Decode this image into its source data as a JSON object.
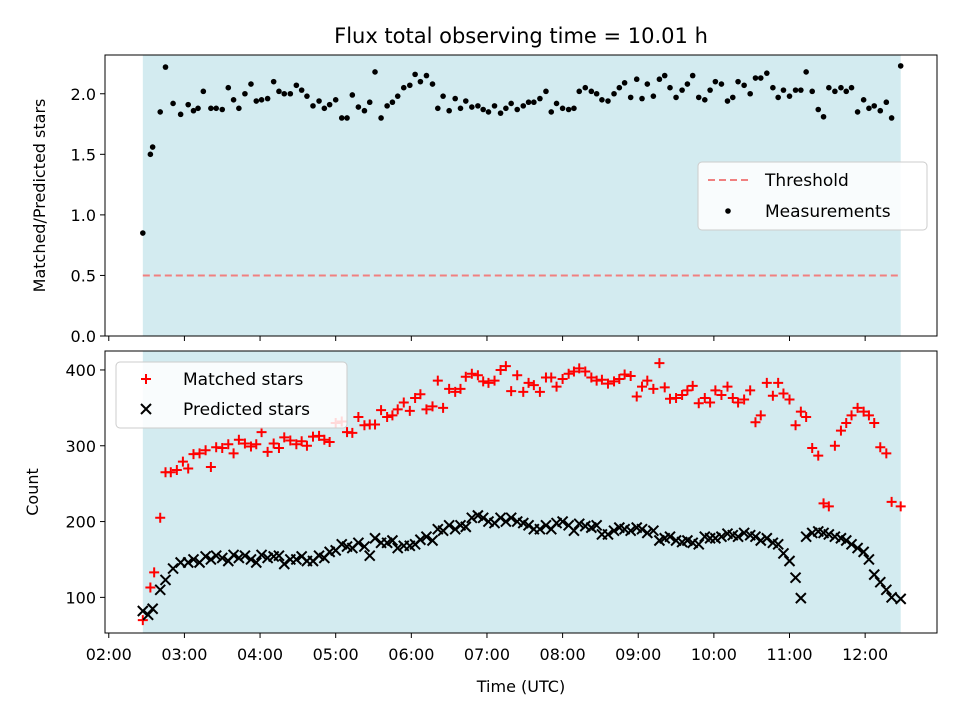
{
  "title": "Flux total observing time = 10.01 h",
  "chart_data": [
    {
      "type": "scatter",
      "ylabel": "Matched/Predicted stars",
      "ylim": [
        0,
        2.32
      ],
      "yticks": [
        0.0,
        0.5,
        1.0,
        1.5,
        2.0
      ],
      "ytick_labels": [
        "0.0",
        "0.5",
        "1.0",
        "1.5",
        "2.0"
      ],
      "xlim": [
        1.95,
        12.95
      ],
      "shaded_span": [
        2.45,
        12.47
      ],
      "shade_color": "#d3ebf0",
      "threshold": {
        "name": "Threshold",
        "y": 0.5,
        "color": "#f08080"
      },
      "series": [
        {
          "name": "Measurements",
          "color": "#000000",
          "x": [
            2.45,
            2.55,
            2.58,
            2.68,
            2.75,
            2.85,
            2.95,
            3.05,
            3.12,
            3.18,
            3.25,
            3.35,
            3.42,
            3.5,
            3.58,
            3.65,
            3.72,
            3.8,
            3.88,
            3.95,
            4.02,
            4.1,
            4.18,
            4.25,
            4.32,
            4.4,
            4.48,
            4.55,
            4.62,
            4.7,
            4.78,
            4.85,
            4.92,
            5.0,
            5.08,
            5.15,
            5.22,
            5.3,
            5.38,
            5.45,
            5.52,
            5.6,
            5.68,
            5.75,
            5.82,
            5.9,
            5.98,
            6.05,
            6.12,
            6.2,
            6.28,
            6.35,
            6.42,
            6.5,
            6.58,
            6.65,
            6.72,
            6.8,
            6.88,
            6.95,
            7.02,
            7.1,
            7.18,
            7.25,
            7.32,
            7.4,
            7.48,
            7.55,
            7.62,
            7.7,
            7.78,
            7.85,
            7.92,
            8.0,
            8.08,
            8.15,
            8.22,
            8.3,
            8.38,
            8.45,
            8.52,
            8.6,
            8.68,
            8.75,
            8.82,
            8.9,
            8.98,
            9.05,
            9.12,
            9.2,
            9.28,
            9.35,
            9.42,
            9.5,
            9.58,
            9.65,
            9.72,
            9.8,
            9.88,
            9.95,
            10.02,
            10.1,
            10.18,
            10.25,
            10.32,
            10.4,
            10.48,
            10.55,
            10.62,
            10.7,
            10.78,
            10.85,
            10.92,
            11.0,
            11.08,
            11.15,
            11.22,
            11.3,
            11.38,
            11.45,
            11.52,
            11.6,
            11.68,
            11.75,
            11.82,
            11.9,
            11.98,
            12.05,
            12.12,
            12.2,
            12.28,
            12.35,
            12.47
          ],
          "y": [
            0.85,
            1.5,
            1.56,
            1.85,
            2.22,
            1.92,
            1.83,
            1.91,
            1.86,
            1.88,
            2.02,
            1.88,
            1.88,
            1.87,
            2.05,
            1.95,
            1.88,
            2.0,
            2.08,
            1.94,
            1.95,
            1.96,
            2.1,
            2.02,
            2.0,
            2.0,
            2.07,
            2.03,
            1.98,
            1.9,
            1.94,
            1.88,
            1.91,
            1.95,
            1.8,
            1.8,
            1.99,
            1.89,
            1.86,
            1.93,
            2.18,
            1.8,
            1.9,
            1.93,
            1.98,
            2.05,
            2.07,
            2.16,
            2.1,
            2.15,
            2.08,
            1.88,
            1.98,
            1.86,
            1.96,
            1.88,
            1.94,
            1.89,
            1.9,
            1.87,
            1.85,
            1.9,
            1.84,
            1.88,
            1.92,
            1.87,
            1.9,
            1.93,
            1.93,
            1.96,
            2.02,
            1.85,
            1.92,
            1.88,
            1.87,
            1.88,
            2.02,
            2.05,
            2.02,
            2.0,
            1.95,
            1.94,
            2.0,
            2.05,
            2.09,
            1.97,
            2.12,
            1.96,
            2.08,
            1.98,
            2.12,
            2.15,
            2.05,
            1.97,
            2.03,
            2.08,
            2.15,
            1.97,
            1.95,
            2.03,
            2.1,
            2.08,
            1.94,
            1.97,
            2.1,
            2.07,
            2.0,
            2.13,
            2.13,
            2.17,
            2.05,
            1.97,
            2.03,
            1.98,
            2.03,
            2.03,
            2.18,
            2.02,
            1.87,
            1.81,
            2.05,
            2.02,
            2.05,
            2.02,
            2.05,
            1.85,
            1.95,
            1.88,
            1.9,
            1.86,
            1.93,
            1.8,
            2.23
          ]
        }
      ]
    },
    {
      "type": "scatter",
      "xlabel": "Time (UTC)",
      "ylabel": "Count",
      "ylim": [
        53,
        425
      ],
      "yticks": [
        100,
        200,
        300,
        400
      ],
      "ytick_labels": [
        "100",
        "200",
        "300",
        "400"
      ],
      "xlim": [
        1.95,
        12.95
      ],
      "xticks": [
        2,
        3,
        4,
        5,
        6,
        7,
        8,
        9,
        10,
        11,
        12
      ],
      "xtick_labels": [
        "02:00",
        "03:00",
        "04:00",
        "05:00",
        "06:00",
        "07:00",
        "08:00",
        "09:00",
        "10:00",
        "11:00",
        "12:00"
      ],
      "shaded_span": [
        2.45,
        12.47
      ],
      "shade_color": "#d3ebf0",
      "series": [
        {
          "name": "Matched stars",
          "marker": "plus",
          "color": "#ff0000",
          "x": [
            2.45,
            2.55,
            2.6,
            2.68,
            2.75,
            2.82,
            2.9,
            2.98,
            3.05,
            3.12,
            3.2,
            3.28,
            3.35,
            3.42,
            3.5,
            3.58,
            3.65,
            3.72,
            3.8,
            3.88,
            3.95,
            4.02,
            4.1,
            4.18,
            4.25,
            4.32,
            4.4,
            4.48,
            4.55,
            4.62,
            4.7,
            4.78,
            4.85,
            4.92,
            5.0,
            5.08,
            5.15,
            5.22,
            5.3,
            5.38,
            5.45,
            5.52,
            5.6,
            5.68,
            5.75,
            5.82,
            5.9,
            5.98,
            6.05,
            6.12,
            6.2,
            6.28,
            6.35,
            6.42,
            6.5,
            6.58,
            6.65,
            6.72,
            6.8,
            6.88,
            6.95,
            7.02,
            7.1,
            7.18,
            7.25,
            7.32,
            7.4,
            7.48,
            7.55,
            7.62,
            7.7,
            7.78,
            7.85,
            7.92,
            8.0,
            8.08,
            8.15,
            8.22,
            8.3,
            8.38,
            8.45,
            8.52,
            8.6,
            8.68,
            8.75,
            8.82,
            8.9,
            8.98,
            9.05,
            9.12,
            9.2,
            9.28,
            9.35,
            9.42,
            9.5,
            9.58,
            9.65,
            9.72,
            9.8,
            9.88,
            9.95,
            10.02,
            10.1,
            10.18,
            10.25,
            10.32,
            10.4,
            10.48,
            10.55,
            10.62,
            10.7,
            10.78,
            10.85,
            10.92,
            11.0,
            11.08,
            11.15,
            11.22,
            11.3,
            11.38,
            11.45,
            11.52,
            11.6,
            11.68,
            11.75,
            11.82,
            11.9,
            11.98,
            12.05,
            12.12,
            12.2,
            12.28,
            12.35,
            12.47
          ],
          "y": [
            70,
            113,
            133,
            205,
            265,
            265,
            268,
            279,
            270,
            289,
            290,
            294,
            272,
            298,
            297,
            302,
            290,
            308,
            303,
            299,
            302,
            318,
            292,
            303,
            297,
            311,
            307,
            302,
            306,
            300,
            312,
            313,
            308,
            305,
            330,
            332,
            318,
            317,
            338,
            327,
            328,
            328,
            347,
            338,
            340,
            348,
            357,
            346,
            363,
            368,
            348,
            352,
            386,
            350,
            375,
            371,
            375,
            391,
            395,
            393,
            385,
            383,
            386,
            400,
            405,
            372,
            393,
            371,
            383,
            380,
            371,
            390,
            390,
            378,
            388,
            395,
            398,
            402,
            398,
            390,
            386,
            387,
            382,
            385,
            388,
            394,
            392,
            365,
            378,
            386,
            375,
            409,
            377,
            362,
            363,
            367,
            373,
            379,
            356,
            363,
            357,
            373,
            367,
            378,
            363,
            357,
            361,
            373,
            331,
            340,
            383,
            366,
            383,
            369,
            361,
            327,
            345,
            338,
            297,
            287,
            224,
            220,
            300,
            320,
            330,
            340,
            350,
            345,
            340,
            330,
            298,
            290,
            226,
            220
          ]
        },
        {
          "name": "Predicted stars",
          "marker": "x",
          "color": "#000000",
          "x": [
            2.45,
            2.52,
            2.58,
            2.68,
            2.75,
            2.85,
            2.95,
            3.05,
            3.12,
            3.2,
            3.28,
            3.35,
            3.42,
            3.5,
            3.58,
            3.65,
            3.72,
            3.8,
            3.88,
            3.95,
            4.02,
            4.1,
            4.18,
            4.25,
            4.32,
            4.4,
            4.48,
            4.55,
            4.62,
            4.7,
            4.78,
            4.85,
            4.92,
            5.0,
            5.08,
            5.15,
            5.22,
            5.3,
            5.38,
            5.45,
            5.52,
            5.6,
            5.68,
            5.75,
            5.82,
            5.9,
            5.98,
            6.05,
            6.12,
            6.2,
            6.28,
            6.35,
            6.42,
            6.5,
            6.58,
            6.65,
            6.72,
            6.8,
            6.88,
            6.95,
            7.02,
            7.1,
            7.18,
            7.25,
            7.32,
            7.4,
            7.48,
            7.55,
            7.62,
            7.7,
            7.78,
            7.85,
            7.92,
            8.0,
            8.08,
            8.15,
            8.22,
            8.3,
            8.38,
            8.45,
            8.52,
            8.6,
            8.68,
            8.75,
            8.82,
            8.9,
            8.98,
            9.05,
            9.12,
            9.2,
            9.28,
            9.35,
            9.42,
            9.5,
            9.58,
            9.65,
            9.72,
            9.8,
            9.88,
            9.95,
            10.02,
            10.1,
            10.18,
            10.25,
            10.32,
            10.4,
            10.48,
            10.55,
            10.62,
            10.7,
            10.78,
            10.85,
            10.92,
            11.0,
            11.08,
            11.15,
            11.22,
            11.3,
            11.38,
            11.45,
            11.52,
            11.6,
            11.68,
            11.75,
            11.82,
            11.9,
            11.98,
            12.05,
            12.12,
            12.2,
            12.28,
            12.35,
            12.47
          ],
          "y": [
            82,
            77,
            85,
            110,
            123,
            138,
            146,
            146,
            150,
            146,
            154,
            150,
            155,
            152,
            148,
            156,
            152,
            155,
            150,
            146,
            156,
            152,
            154,
            155,
            144,
            150,
            150,
            154,
            148,
            148,
            155,
            152,
            160,
            162,
            170,
            167,
            165,
            172,
            167,
            155,
            178,
            172,
            172,
            175,
            165,
            168,
            168,
            170,
            176,
            180,
            175,
            190,
            188,
            195,
            190,
            195,
            193,
            205,
            208,
            205,
            200,
            198,
            205,
            200,
            205,
            200,
            198,
            195,
            190,
            190,
            195,
            190,
            198,
            200,
            195,
            188,
            197,
            194,
            192,
            195,
            183,
            183,
            188,
            192,
            190,
            188,
            192,
            190,
            185,
            188,
            175,
            178,
            180,
            175,
            173,
            175,
            172,
            170,
            180,
            178,
            178,
            180,
            184,
            182,
            180,
            185,
            182,
            180,
            175,
            178,
            172,
            170,
            158,
            148,
            126,
            99,
            180,
            185,
            187,
            185,
            183,
            180,
            178,
            175,
            170,
            165,
            160,
            150,
            130,
            120,
            110,
            100,
            98
          ]
        }
      ]
    }
  ]
}
